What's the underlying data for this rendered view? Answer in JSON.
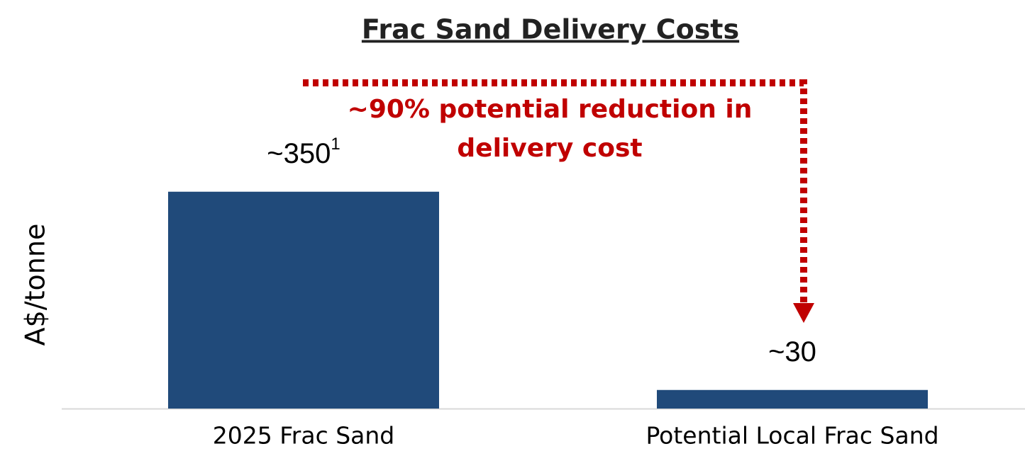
{
  "chart_data": {
    "type": "bar",
    "title": "Frac Sand Delivery Costs",
    "ylabel": "A$/tonne",
    "categories": [
      "2025 Frac Sand",
      "Potential Local Frac Sand"
    ],
    "values": [
      350,
      30
    ],
    "value_labels": [
      "~350",
      "~30"
    ],
    "value_label_footnotes": [
      "1",
      null
    ],
    "color": "#204a7a",
    "ylim": [
      0,
      400
    ],
    "annotation": {
      "lines": [
        "~90% potential reduction in",
        "delivery cost"
      ],
      "color": "#c00000"
    }
  }
}
